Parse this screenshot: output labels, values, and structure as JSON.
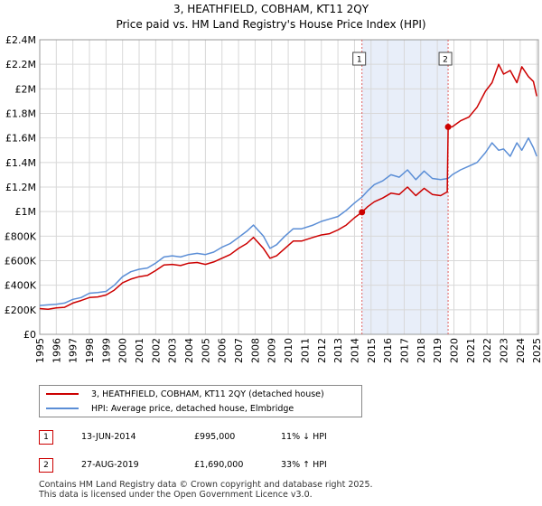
{
  "title": "3, HEATHFIELD, COBHAM, KT11 2QY",
  "subtitle": "Price paid vs. HM Land Registry's House Price Index (HPI)",
  "colors": {
    "property": "#cc0000",
    "hpi": "#5b8ed6",
    "shade": "#e8eef9",
    "marker_border": "#cc0000"
  },
  "chart_data": {
    "type": "line",
    "title": "3, HEATHFIELD, COBHAM, KT11 2QY",
    "subtitle": "Price paid vs. HM Land Registry's House Price Index (HPI)",
    "xlim": [
      1995,
      2025.1
    ],
    "ylim": [
      0,
      2400000
    ],
    "x_ticks": [
      1995,
      1996,
      1997,
      1998,
      1999,
      2000,
      2001,
      2002,
      2003,
      2004,
      2005,
      2006,
      2007,
      2008,
      2009,
      2010,
      2011,
      2012,
      2013,
      2014,
      2015,
      2016,
      2017,
      2018,
      2019,
      2020,
      2021,
      2022,
      2023,
      2024,
      2025
    ],
    "x_tick_labels": [
      "1995",
      "1996",
      "1997",
      "1998",
      "1999",
      "2000",
      "2001",
      "2002",
      "2003",
      "2004",
      "2005",
      "2006",
      "2007",
      "2008",
      "2009",
      "2010",
      "2011",
      "2012",
      "2013",
      "2014",
      "2015",
      "2016",
      "2017",
      "2018",
      "2019",
      "2020",
      "2021",
      "2022",
      "2023",
      "2024",
      "2025"
    ],
    "y_ticks": [
      0,
      200000,
      400000,
      600000,
      800000,
      1000000,
      1200000,
      1400000,
      1600000,
      1800000,
      2000000,
      2200000,
      2400000
    ],
    "y_tick_labels": [
      "£0",
      "£200K",
      "£400K",
      "£600K",
      "£800K",
      "£1M",
      "£1.2M",
      "£1.4M",
      "£1.6M",
      "£1.8M",
      "£2M",
      "£2.2M",
      "£2.4M"
    ],
    "grid": true,
    "shaded_region": [
      2014.45,
      2019.65
    ],
    "series": [
      {
        "name": "3, HEATHFIELD, COBHAM, KT11 2QY (detached house)",
        "x": [
          1995,
          1995.5,
          1996,
          1996.5,
          1997,
          1997.5,
          1998,
          1998.5,
          1999,
          1999.5,
          2000,
          2000.5,
          2001,
          2001.5,
          2002,
          2002.5,
          2003,
          2003.5,
          2004,
          2004.5,
          2005,
          2005.5,
          2006,
          2006.5,
          2007,
          2007.5,
          2007.9,
          2008.5,
          2008.9,
          2009.3,
          2009.8,
          2010.3,
          2010.8,
          2011.5,
          2012,
          2012.5,
          2013,
          2013.5,
          2014,
          2014.45,
          2014.8,
          2015.2,
          2015.7,
          2016.2,
          2016.7,
          2017.2,
          2017.7,
          2018.2,
          2018.7,
          2019.2,
          2019.6,
          2019.65,
          2019.9,
          2020.4,
          2020.9,
          2021.4,
          2021.9,
          2022.3,
          2022.7,
          2023.0,
          2023.4,
          2023.8,
          2024.1,
          2024.5,
          2024.8,
          2025.0
        ],
        "values": [
          210000,
          205000,
          215000,
          220000,
          255000,
          275000,
          300000,
          305000,
          320000,
          360000,
          420000,
          450000,
          470000,
          480000,
          520000,
          565000,
          570000,
          560000,
          580000,
          585000,
          570000,
          590000,
          620000,
          650000,
          700000,
          740000,
          790000,
          700000,
          620000,
          640000,
          700000,
          760000,
          760000,
          790000,
          810000,
          820000,
          850000,
          890000,
          950000,
          995000,
          1040000,
          1080000,
          1110000,
          1150000,
          1140000,
          1200000,
          1130000,
          1190000,
          1140000,
          1130000,
          1160000,
          1690000,
          1690000,
          1740000,
          1770000,
          1850000,
          1980000,
          2050000,
          2200000,
          2120000,
          2150000,
          2050000,
          2180000,
          2100000,
          2060000,
          1940000
        ]
      },
      {
        "name": "HPI: Average price, detached house, Elmbridge",
        "x": [
          1995,
          1995.5,
          1996,
          1996.5,
          1997,
          1997.5,
          1998,
          1998.5,
          1999,
          1999.5,
          2000,
          2000.5,
          2001,
          2001.5,
          2002,
          2002.5,
          2003,
          2003.5,
          2004,
          2004.5,
          2005,
          2005.5,
          2006,
          2006.5,
          2007,
          2007.5,
          2007.9,
          2008.5,
          2008.9,
          2009.3,
          2009.8,
          2010.3,
          2010.8,
          2011.5,
          2012,
          2012.5,
          2013,
          2013.5,
          2014,
          2014.45,
          2014.8,
          2015.2,
          2015.7,
          2016.2,
          2016.7,
          2017.2,
          2017.7,
          2018.2,
          2018.7,
          2019.2,
          2019.65,
          2019.9,
          2020.4,
          2020.9,
          2021.4,
          2021.9,
          2022.3,
          2022.7,
          2023.0,
          2023.4,
          2023.8,
          2024.1,
          2024.5,
          2024.8,
          2025.0
        ],
        "values": [
          235000,
          240000,
          245000,
          255000,
          285000,
          300000,
          335000,
          340000,
          350000,
          400000,
          470000,
          510000,
          530000,
          540000,
          580000,
          630000,
          640000,
          630000,
          650000,
          660000,
          650000,
          670000,
          710000,
          740000,
          790000,
          840000,
          890000,
          800000,
          700000,
          730000,
          800000,
          860000,
          860000,
          890000,
          920000,
          940000,
          960000,
          1010000,
          1070000,
          1118000,
          1170000,
          1220000,
          1250000,
          1300000,
          1280000,
          1340000,
          1260000,
          1330000,
          1270000,
          1260000,
          1270000,
          1300000,
          1340000,
          1370000,
          1400000,
          1480000,
          1560000,
          1500000,
          1510000,
          1450000,
          1560000,
          1500000,
          1600000,
          1520000,
          1450000
        ]
      }
    ],
    "markers": [
      {
        "id": "1",
        "x": 2014.45,
        "y": 995000
      },
      {
        "id": "2",
        "x": 2019.65,
        "y": 1690000
      }
    ]
  },
  "legend": {
    "property_label": "3, HEATHFIELD, COBHAM, KT11 2QY (detached house)",
    "hpi_label": "HPI: Average price, detached house, Elmbridge"
  },
  "transactions": [
    {
      "num": "1",
      "date": "13-JUN-2014",
      "price": "£995,000",
      "hpi_diff": "11% ↓ HPI"
    },
    {
      "num": "2",
      "date": "27-AUG-2019",
      "price": "£1,690,000",
      "hpi_diff": "33% ↑ HPI"
    }
  ],
  "footer": {
    "line1": "Contains HM Land Registry data © Crown copyright and database right 2025.",
    "line2": "This data is licensed under the Open Government Licence v3.0."
  }
}
